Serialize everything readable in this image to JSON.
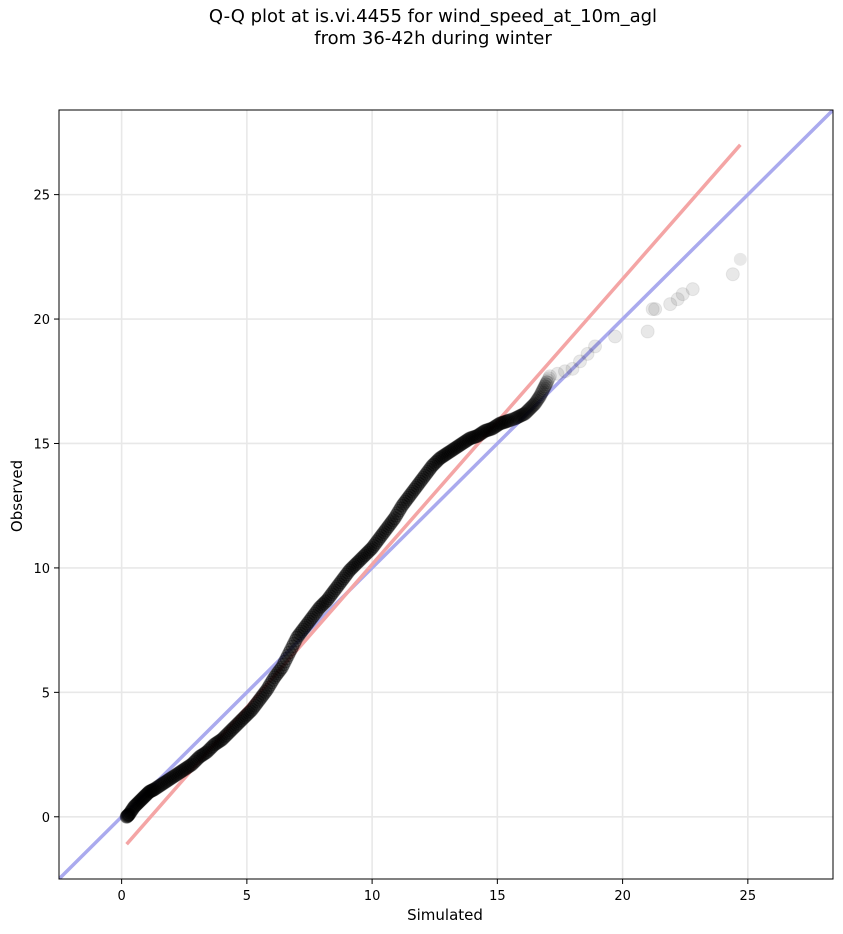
{
  "chart_data": {
    "type": "scatter",
    "title": "Q-Q plot at is.vi.4455 for wind_speed_at_10m_agl",
    "subtitle": "from 36-42h during winter",
    "xlabel": "Simulated",
    "ylabel": "Observed",
    "xlim": [
      -2.5,
      28.4
    ],
    "ylim": [
      -2.5,
      28.4
    ],
    "xticks": [
      0,
      5,
      10,
      15,
      20,
      25
    ],
    "yticks": [
      0,
      5,
      10,
      15,
      20,
      25
    ],
    "grid": true,
    "colors": {
      "points": "#000000",
      "one_to_one_line": "#aaaaee",
      "fit_line": "#f4a5a5",
      "grid": "#e8e8e8"
    },
    "reference_lines": [
      {
        "kind": "one-to-one",
        "x": [
          -2.5,
          28.4
        ],
        "y": [
          -2.5,
          28.4
        ]
      },
      {
        "kind": "linear-fit",
        "x": [
          0.2,
          24.7
        ],
        "y": [
          -1.1,
          27.0
        ]
      }
    ],
    "quantiles": {
      "x": [
        0.2,
        0.3,
        0.5,
        0.7,
        0.9,
        1.1,
        1.3,
        1.6,
        1.9,
        2.2,
        2.5,
        2.8,
        3.1,
        3.4,
        3.7,
        4.0,
        4.3,
        4.6,
        4.9,
        5.2,
        5.5,
        5.8,
        6.1,
        6.4,
        6.7,
        7.0,
        7.3,
        7.6,
        7.9,
        8.2,
        8.5,
        8.8,
        9.1,
        9.4,
        9.7,
        10.0,
        10.3,
        10.6,
        10.9,
        11.2,
        11.5,
        11.8,
        12.1,
        12.4,
        12.7,
        13.0,
        13.3,
        13.6,
        13.9,
        14.2,
        14.5,
        14.8,
        15.1,
        15.4,
        15.7,
        15.9,
        16.1,
        16.3,
        16.5,
        16.7,
        16.9,
        17.1,
        17.4,
        17.7,
        18.0,
        18.3,
        18.6,
        18.9,
        19.7,
        21.0,
        21.2,
        21.3,
        21.9,
        22.2,
        22.4,
        22.8,
        24.4,
        24.7
      ],
      "y": [
        0.0,
        0.1,
        0.4,
        0.6,
        0.8,
        1.0,
        1.1,
        1.3,
        1.5,
        1.7,
        1.9,
        2.1,
        2.4,
        2.6,
        2.9,
        3.1,
        3.4,
        3.7,
        4.0,
        4.3,
        4.7,
        5.1,
        5.6,
        6.0,
        6.6,
        7.2,
        7.6,
        8.0,
        8.4,
        8.7,
        9.1,
        9.5,
        9.9,
        10.2,
        10.5,
        10.8,
        11.2,
        11.6,
        12.0,
        12.5,
        12.9,
        13.3,
        13.7,
        14.1,
        14.4,
        14.6,
        14.8,
        15.0,
        15.2,
        15.3,
        15.5,
        15.6,
        15.8,
        15.9,
        16.0,
        16.1,
        16.2,
        16.4,
        16.6,
        16.9,
        17.3,
        17.7,
        17.8,
        17.9,
        18.0,
        18.3,
        18.6,
        18.9,
        19.3,
        19.5,
        20.4,
        20.4,
        20.6,
        20.8,
        21.0,
        21.2,
        21.8,
        22.4
      ]
    }
  }
}
